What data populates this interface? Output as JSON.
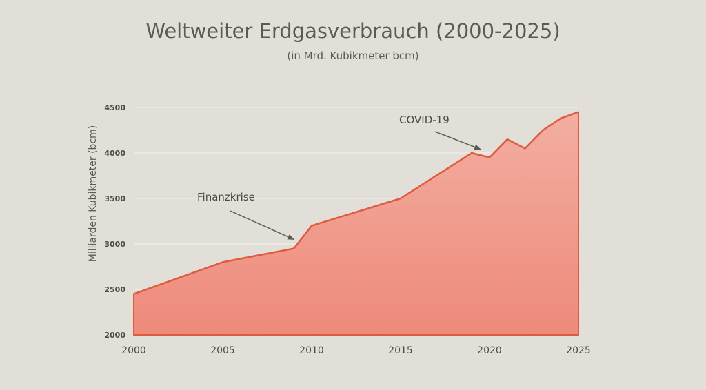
{
  "chart_data": {
    "type": "area",
    "title": "Weltweiter Erdgasverbrauch (2000-2025)",
    "subtitle": "(in Mrd. Kubikmeter bcm)",
    "xlabel": "",
    "ylabel": "Milliarden Kubikmeter (bcm)",
    "xlim": [
      2000,
      2025
    ],
    "ylim": [
      2000,
      4500
    ],
    "grid": true,
    "x_ticks": [
      2000,
      2005,
      2010,
      2015,
      2020,
      2025
    ],
    "y_ticks": [
      2000,
      2500,
      3000,
      3500,
      4000,
      4500
    ],
    "series": [
      {
        "name": "Erdgasverbrauch",
        "x": [
          2000,
          2005,
          2009,
          2010,
          2015,
          2019,
          2020,
          2021,
          2022,
          2023,
          2024,
          2025
        ],
        "values": [
          2450,
          2800,
          2950,
          3200,
          3500,
          4000,
          3950,
          4150,
          4050,
          4250,
          4380,
          4450
        ]
      }
    ],
    "annotations": [
      {
        "text": "Finanzkrise",
        "target_x": 2009,
        "target_y": 3050
      },
      {
        "text": "COVID-19",
        "target_x": 2019.5,
        "target_y": 4040
      }
    ],
    "colors": {
      "line": "#e05a3e",
      "fill_top": "#f3aea2",
      "fill_bottom": "#ee8a7a",
      "grid": "#f2f0ec",
      "arrow": "#5b5b55"
    }
  }
}
